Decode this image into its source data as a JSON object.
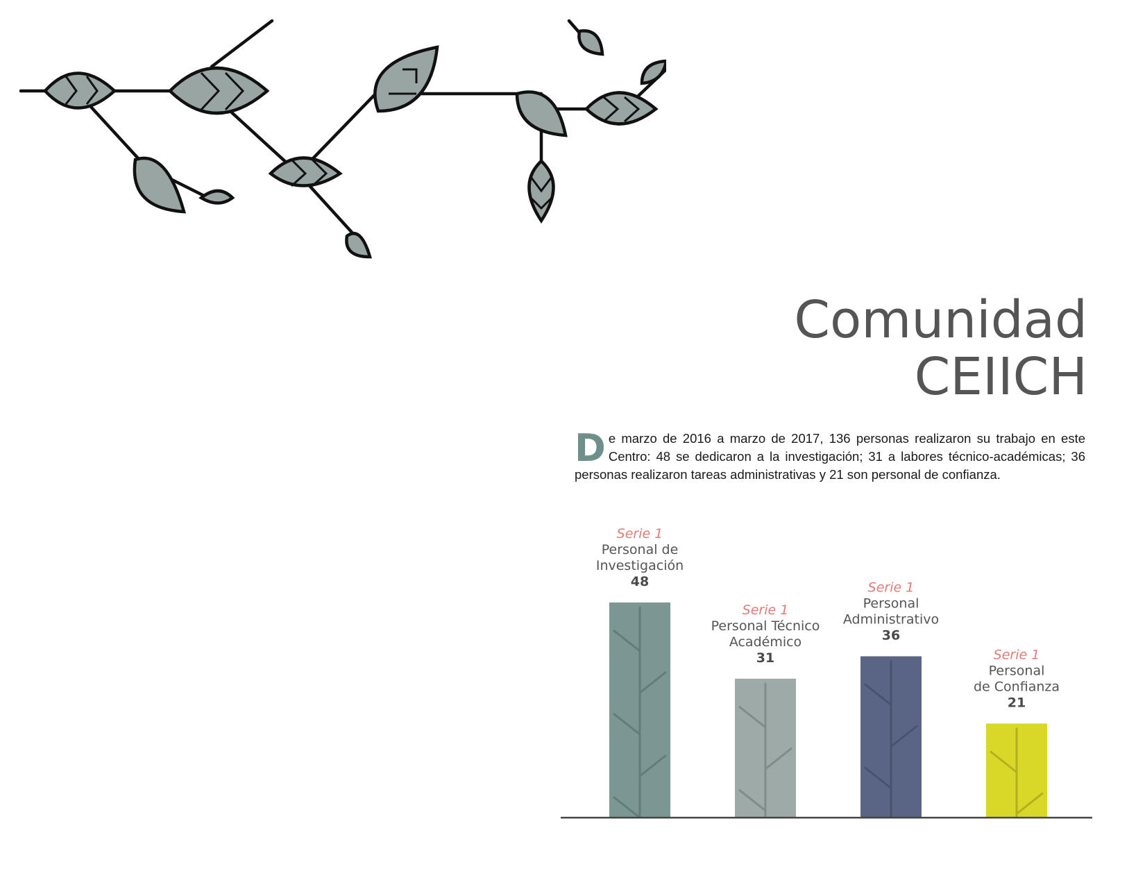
{
  "page": {
    "title_line1": "Comunidad",
    "title_line2": "CEIICH",
    "intro_dropcap": "D",
    "intro_text": "e marzo de 2016 a marzo de 2017, 136 personas realizaron su trabajo en este Centro: 48 se dedicaron a la investigación; 31 a labores técnico-académicas; 36 personas realizaron tareas administrativas y 21 son personal de confianza."
  },
  "chart_data": {
    "type": "bar",
    "categories": [
      [
        "Personal de",
        "Investigación"
      ],
      [
        "Personal Técnico",
        "Académico"
      ],
      [
        "Personal",
        "Administrativo"
      ],
      [
        "Personal",
        "de Confianza"
      ]
    ],
    "series": [
      {
        "name": "Serie 1",
        "values": [
          48,
          31,
          36,
          21
        ]
      }
    ],
    "bar_colors": [
      "#7a9794",
      "#9eaaa8",
      "#5a6585",
      "#d9d727"
    ],
    "ylim": [
      0,
      48
    ],
    "grid": false,
    "legend": "none"
  }
}
